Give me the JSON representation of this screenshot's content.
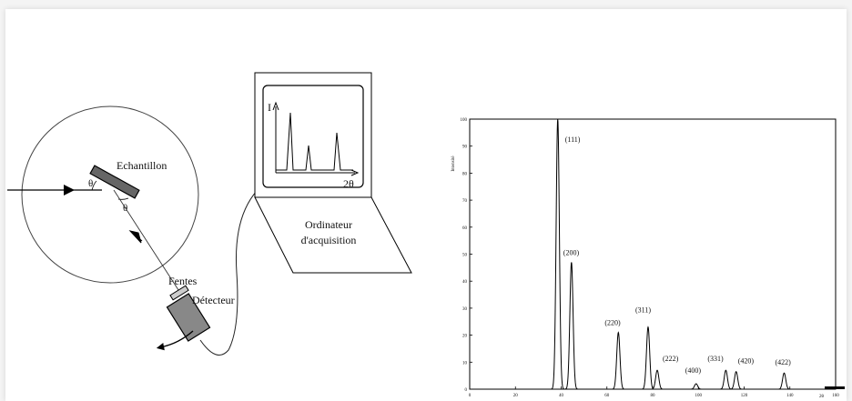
{
  "diagram": {
    "sample_label": "Echantillon",
    "theta_incident": "θ",
    "theta_reflected": "θ",
    "slits_label": "Fentes",
    "detector_label": "Détecteur",
    "computer_line1": "Ordinateur",
    "computer_line2": "d'acquisition",
    "screen_y_label": "I",
    "screen_x_label": "2θ"
  },
  "chart_data": {
    "type": "line",
    "title": "",
    "xlabel": "",
    "ylabel": "Intensité",
    "xlim": [
      0,
      160
    ],
    "ylim": [
      0,
      100
    ],
    "x_ticks": [
      "0",
      "20",
      "40",
      "60",
      "80",
      "100",
      "120",
      "140",
      "160"
    ],
    "y_ticks": [
      "0",
      "10",
      "20",
      "30",
      "40",
      "50",
      "60",
      "70",
      "80",
      "90",
      "100"
    ],
    "extra_tick_label": "2θ",
    "peaks": [
      {
        "label": "(111)",
        "x": 38.5,
        "y": 100
      },
      {
        "label": "(200)",
        "x": 44.5,
        "y": 47
      },
      {
        "label": "(220)",
        "x": 65,
        "y": 21
      },
      {
        "label": "(311)",
        "x": 78,
        "y": 23
      },
      {
        "label": "(222)",
        "x": 82,
        "y": 7
      },
      {
        "label": "(400)",
        "x": 99,
        "y": 2
      },
      {
        "label": "(331)",
        "x": 112,
        "y": 7
      },
      {
        "label": "(420)",
        "x": 116.5,
        "y": 6.5
      },
      {
        "label": "(422)",
        "x": 137.5,
        "y": 6
      }
    ]
  }
}
